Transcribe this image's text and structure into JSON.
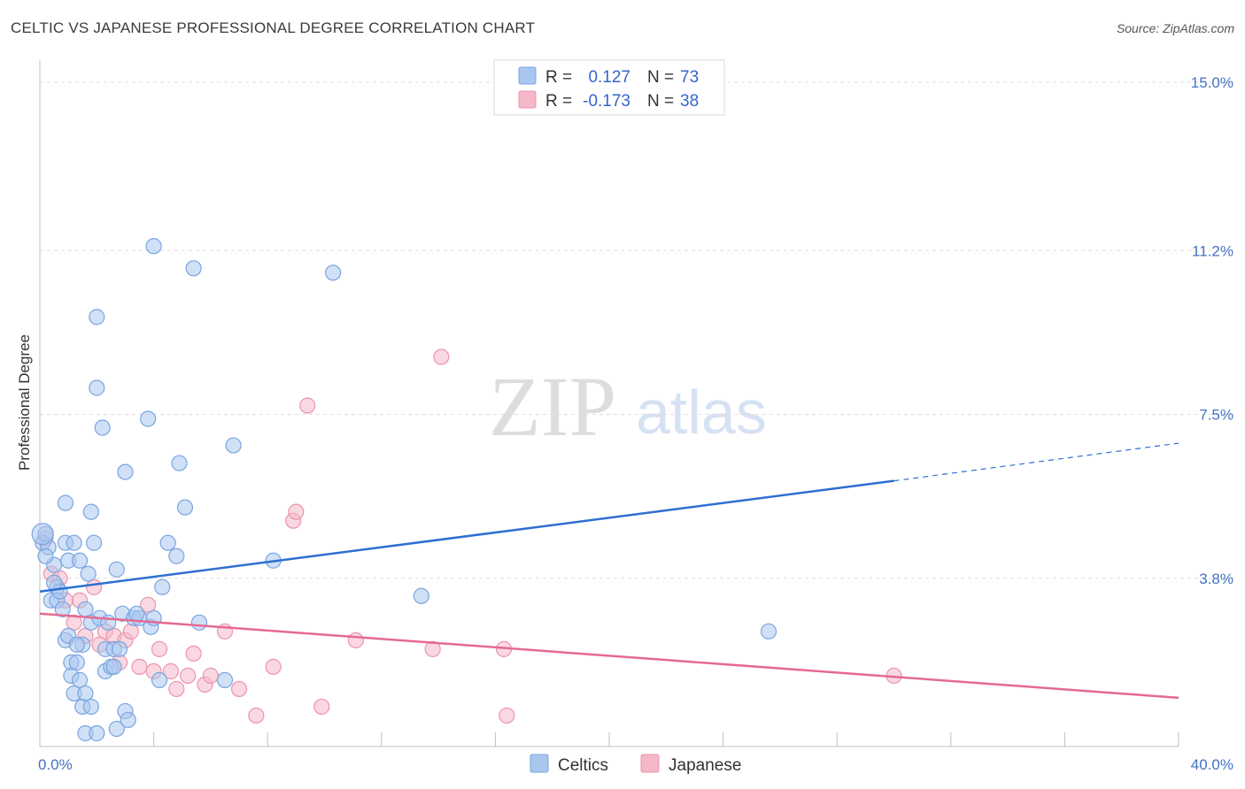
{
  "header": {
    "title": "CELTIC VS JAPANESE PROFESSIONAL DEGREE CORRELATION CHART",
    "source": "Source: ZipAtlas.com"
  },
  "watermark": {
    "zip": "ZIP",
    "atlas": "atlas"
  },
  "legend_top": {
    "rows": [
      {
        "r_label": "R =",
        "r_value": "0.127",
        "n_label": "N =",
        "n_value": "73",
        "color": "#a9c6ef"
      },
      {
        "r_label": "R =",
        "r_value": "-0.173",
        "n_label": "N =",
        "n_value": "38",
        "color": "#f4b8c8"
      }
    ]
  },
  "legend_bottom": {
    "items": [
      {
        "label": "Celtics",
        "color": "#a9c6ef"
      },
      {
        "label": "Japanese",
        "color": "#f4b8c8"
      }
    ]
  },
  "colors": {
    "celtics_fill": "#a9c6ef",
    "celtics_stroke": "#7aa5e0",
    "celtics_line": "#2d6fd1",
    "japanese_fill": "#f4b8c8",
    "japanese_stroke": "#ec93ad",
    "japanese_line": "#e56a93",
    "grid": "#dddddd",
    "tick_text": "#4472c4"
  },
  "chart_data": {
    "type": "scatter",
    "title": "CELTIC VS JAPANESE PROFESSIONAL DEGREE CORRELATION CHART",
    "xlabel": "",
    "ylabel": "Professional Degree",
    "xlim": [
      0,
      40
    ],
    "ylim": [
      0,
      15.5
    ],
    "x_tick_labels": [
      {
        "value": 0,
        "label": "0.0%"
      },
      {
        "value": 40,
        "label": "40.0%"
      }
    ],
    "y_tick_labels": [
      {
        "value": 3.8,
        "label": "3.8%"
      },
      {
        "value": 7.5,
        "label": "7.5%"
      },
      {
        "value": 11.2,
        "label": "11.2%"
      },
      {
        "value": 15.0,
        "label": "15.0%"
      }
    ],
    "grid": true,
    "legend_position": "top-center",
    "series": [
      {
        "name": "Celtics",
        "R": 0.127,
        "N": 73,
        "trend": {
          "x0": 0,
          "y0": 3.5,
          "x1": 30,
          "y1": 6.0,
          "x_end": 40,
          "y_end": 6.85
        },
        "points": [
          [
            0.1,
            4.6
          ],
          [
            0.2,
            4.8
          ],
          [
            0.3,
            4.5
          ],
          [
            0.4,
            3.3
          ],
          [
            0.5,
            4.1
          ],
          [
            0.6,
            3.6
          ],
          [
            0.6,
            3.3
          ],
          [
            0.7,
            3.5
          ],
          [
            0.8,
            3.1
          ],
          [
            0.9,
            2.4
          ],
          [
            0.9,
            4.6
          ],
          [
            0.9,
            5.5
          ],
          [
            1.0,
            2.5
          ],
          [
            1.0,
            4.2
          ],
          [
            1.1,
            1.9
          ],
          [
            1.1,
            1.6
          ],
          [
            1.2,
            1.2
          ],
          [
            1.2,
            4.6
          ],
          [
            1.3,
            1.9
          ],
          [
            1.4,
            1.5
          ],
          [
            1.4,
            4.2
          ],
          [
            1.5,
            2.3
          ],
          [
            1.5,
            0.9
          ],
          [
            1.6,
            0.3
          ],
          [
            1.6,
            1.2
          ],
          [
            1.6,
            3.1
          ],
          [
            1.7,
            3.9
          ],
          [
            1.8,
            2.8
          ],
          [
            1.8,
            0.9
          ],
          [
            1.8,
            5.3
          ],
          [
            1.9,
            4.6
          ],
          [
            2.0,
            9.7
          ],
          [
            2.0,
            8.1
          ],
          [
            2.0,
            0.3
          ],
          [
            2.1,
            2.9
          ],
          [
            2.2,
            7.2
          ],
          [
            2.3,
            2.2
          ],
          [
            2.3,
            1.7
          ],
          [
            2.4,
            2.8
          ],
          [
            2.5,
            1.8
          ],
          [
            2.6,
            2.2
          ],
          [
            2.7,
            0.4
          ],
          [
            2.7,
            4.0
          ],
          [
            2.8,
            2.2
          ],
          [
            2.9,
            3.0
          ],
          [
            3.0,
            0.8
          ],
          [
            3.0,
            6.2
          ],
          [
            3.1,
            0.6
          ],
          [
            3.3,
            2.9
          ],
          [
            3.5,
            2.9
          ],
          [
            3.8,
            7.4
          ],
          [
            3.9,
            2.7
          ],
          [
            4.0,
            2.9
          ],
          [
            4.0,
            11.3
          ],
          [
            4.2,
            1.5
          ],
          [
            4.3,
            3.6
          ],
          [
            4.5,
            4.6
          ],
          [
            4.8,
            4.3
          ],
          [
            4.9,
            6.4
          ],
          [
            5.1,
            5.4
          ],
          [
            5.4,
            10.8
          ],
          [
            5.6,
            2.8
          ],
          [
            6.5,
            1.5
          ],
          [
            6.8,
            6.8
          ],
          [
            8.2,
            4.2
          ],
          [
            10.3,
            10.7
          ],
          [
            13.4,
            3.4
          ],
          [
            25.6,
            2.6
          ],
          [
            0.2,
            4.3
          ],
          [
            0.5,
            3.7
          ],
          [
            1.3,
            2.3
          ],
          [
            2.6,
            1.8
          ],
          [
            3.4,
            3.0
          ]
        ]
      },
      {
        "name": "Japanese",
        "R": -0.173,
        "N": 38,
        "trend": {
          "x0": 0,
          "y0": 3.0,
          "x1": 40,
          "y1": 1.1
        },
        "points": [
          [
            0.2,
            4.7
          ],
          [
            0.4,
            3.9
          ],
          [
            0.7,
            3.8
          ],
          [
            0.9,
            3.3
          ],
          [
            1.2,
            2.8
          ],
          [
            1.4,
            3.3
          ],
          [
            1.6,
            2.5
          ],
          [
            1.9,
            3.6
          ],
          [
            2.1,
            2.3
          ],
          [
            2.3,
            2.6
          ],
          [
            2.6,
            2.5
          ],
          [
            2.8,
            1.9
          ],
          [
            3.0,
            2.4
          ],
          [
            3.2,
            2.6
          ],
          [
            3.5,
            1.8
          ],
          [
            3.8,
            3.2
          ],
          [
            4.0,
            1.7
          ],
          [
            4.2,
            2.2
          ],
          [
            4.6,
            1.7
          ],
          [
            4.8,
            1.3
          ],
          [
            5.2,
            1.6
          ],
          [
            5.4,
            2.1
          ],
          [
            5.8,
            1.4
          ],
          [
            6.0,
            1.6
          ],
          [
            6.5,
            2.6
          ],
          [
            7.0,
            1.3
          ],
          [
            7.6,
            0.7
          ],
          [
            8.2,
            1.8
          ],
          [
            8.9,
            5.1
          ],
          [
            9.0,
            5.3
          ],
          [
            9.4,
            7.7
          ],
          [
            9.9,
            0.9
          ],
          [
            11.1,
            2.4
          ],
          [
            13.8,
            2.2
          ],
          [
            14.1,
            8.8
          ],
          [
            16.3,
            2.2
          ],
          [
            16.4,
            0.7
          ],
          [
            30.0,
            1.6
          ]
        ]
      }
    ]
  }
}
